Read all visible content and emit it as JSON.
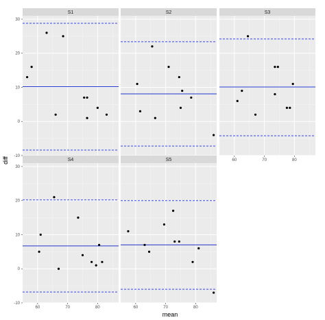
{
  "chart_data": {
    "type": "scatter",
    "title": "",
    "xlabel": "mean",
    "ylabel": "diff",
    "xlim": [
      55,
      87
    ],
    "ylim": [
      -10,
      31
    ],
    "x_ticks": [
      60,
      70,
      80
    ],
    "y_ticks": [
      -10,
      0,
      10,
      20,
      30
    ],
    "grid": true,
    "layout": "facet_wrap, 3 columns",
    "colors": {
      "panel_bg": "#ebebeb",
      "strip_bg": "#d9d9d9",
      "grid_major": "#ffffff",
      "grid_minor": "#f5f5f5",
      "point": "#000000",
      "mean_line": "#2233cc",
      "limit_line": "#3344ee"
    },
    "panels": [
      {
        "label": "S1",
        "mean_line": 10.2,
        "upper_limit": 28.8,
        "lower_limit": -8.4,
        "points": [
          {
            "x": 56.5,
            "y": 13
          },
          {
            "x": 58,
            "y": 16
          },
          {
            "x": 63,
            "y": 26
          },
          {
            "x": 66,
            "y": 2
          },
          {
            "x": 68.5,
            "y": 25
          },
          {
            "x": 75.5,
            "y": 7
          },
          {
            "x": 76.5,
            "y": 7
          },
          {
            "x": 76.5,
            "y": 1
          },
          {
            "x": 80,
            "y": 4
          },
          {
            "x": 83,
            "y": 2
          }
        ]
      },
      {
        "label": "S2",
        "mean_line": 8.1,
        "upper_limit": 23.4,
        "lower_limit": -7.2,
        "points": [
          {
            "x": 60.5,
            "y": 11
          },
          {
            "x": 61.5,
            "y": 3
          },
          {
            "x": 65.5,
            "y": 22
          },
          {
            "x": 66.5,
            "y": 1
          },
          {
            "x": 71,
            "y": 16
          },
          {
            "x": 74.5,
            "y": 13
          },
          {
            "x": 75.5,
            "y": 9
          },
          {
            "x": 75,
            "y": 4
          },
          {
            "x": 78.5,
            "y": 7
          },
          {
            "x": 86,
            "y": -4
          }
        ]
      },
      {
        "label": "S3",
        "mean_line": 10.1,
        "upper_limit": 24.2,
        "lower_limit": -4.2,
        "points": [
          {
            "x": 61,
            "y": 6
          },
          {
            "x": 62.5,
            "y": 9
          },
          {
            "x": 64.5,
            "y": 25
          },
          {
            "x": 67,
            "y": 2
          },
          {
            "x": 73.5,
            "y": 16
          },
          {
            "x": 74.5,
            "y": 16
          },
          {
            "x": 73.5,
            "y": 8
          },
          {
            "x": 77.5,
            "y": 4
          },
          {
            "x": 78.5,
            "y": 4
          },
          {
            "x": 79.5,
            "y": 11
          }
        ]
      },
      {
        "label": "S4",
        "mean_line": 6.7,
        "upper_limit": 20.2,
        "lower_limit": -6.8,
        "points": [
          {
            "x": 60.5,
            "y": 5
          },
          {
            "x": 61,
            "y": 10
          },
          {
            "x": 65.5,
            "y": 21
          },
          {
            "x": 67,
            "y": 0
          },
          {
            "x": 73.5,
            "y": 15
          },
          {
            "x": 75,
            "y": 4
          },
          {
            "x": 78,
            "y": 2
          },
          {
            "x": 79.5,
            "y": 1
          },
          {
            "x": 80.5,
            "y": 7
          },
          {
            "x": 81.5,
            "y": 2
          }
        ]
      },
      {
        "label": "S5",
        "mean_line": 7,
        "upper_limit": 20,
        "lower_limit": -6,
        "points": [
          {
            "x": 57.5,
            "y": 11
          },
          {
            "x": 63,
            "y": 7
          },
          {
            "x": 64.5,
            "y": 5
          },
          {
            "x": 69.5,
            "y": 13
          },
          {
            "x": 72.5,
            "y": 17
          },
          {
            "x": 73,
            "y": 8
          },
          {
            "x": 74.5,
            "y": 8
          },
          {
            "x": 79,
            "y": 2
          },
          {
            "x": 81,
            "y": 6
          },
          {
            "x": 86,
            "y": -7
          }
        ]
      }
    ]
  }
}
